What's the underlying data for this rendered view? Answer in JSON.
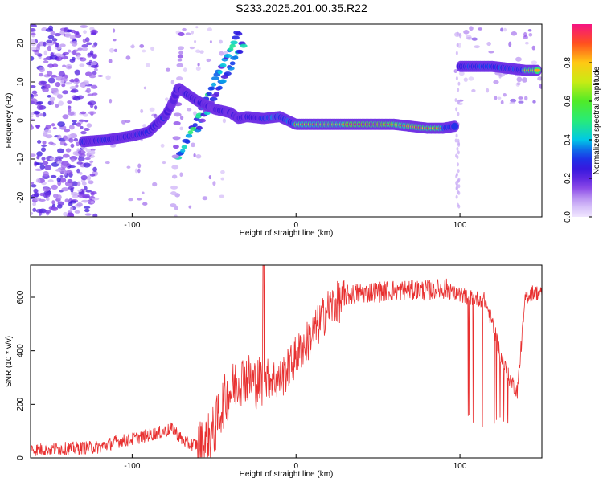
{
  "title": "S233.2025.201.00.35.R22",
  "chart_data": [
    {
      "type": "heatmap",
      "xlabel": "Height of straight line (km)",
      "ylabel": "Frequency (Hz)",
      "xlim": [
        -162,
        150
      ],
      "ylim": [
        -25,
        25
      ],
      "xticks": [
        -100,
        0,
        100
      ],
      "yticks": [
        -20,
        -10,
        0,
        10,
        20
      ],
      "colorbar": {
        "label": "Normalized spectral amplitude",
        "range": [
          0,
          1
        ],
        "ticks": [
          0.0,
          0.2,
          0.4,
          0.6,
          0.8
        ]
      },
      "ridge": {
        "x": [
          -130,
          -115,
          -100,
          -90,
          -80,
          -75,
          -72,
          -60,
          -50,
          -40,
          -35,
          -30,
          -20,
          -10,
          0,
          10,
          20,
          40,
          60,
          70,
          80,
          90,
          97,
          100,
          110,
          120,
          130,
          140,
          148
        ],
        "freq": [
          -5.5,
          -5,
          -4,
          -3,
          1,
          5,
          8.5,
          5,
          3,
          2,
          0.5,
          1,
          0.5,
          1,
          -1,
          -1,
          -1,
          -1,
          -1,
          -1.5,
          -2,
          -2,
          -1.5,
          14,
          14,
          14,
          13.5,
          13,
          13
        ]
      }
    },
    {
      "type": "line",
      "xlabel": "Height of straight line (km)",
      "ylabel": "SNR (10 * v/v)",
      "xlim": [
        -162,
        150
      ],
      "ylim": [
        0,
        720
      ],
      "xticks": [
        -100,
        0,
        100
      ],
      "yticks": [
        0,
        200,
        400,
        600
      ],
      "color": "#e83030",
      "series": [
        {
          "x": [
            -162,
            -140,
            -120,
            -110,
            -100,
            -90,
            -80,
            -75,
            -70,
            -65,
            -60,
            -55,
            -50,
            -45,
            -40,
            -35,
            -30,
            -25,
            -20,
            -15,
            -10,
            -5,
            0,
            5,
            10,
            15,
            20,
            25,
            30,
            40,
            50,
            60,
            70,
            80,
            90,
            95,
            100,
            105,
            110,
            115,
            120,
            125,
            130,
            135,
            140,
            145,
            150
          ],
          "values": [
            20,
            25,
            30,
            50,
            60,
            75,
            90,
            100,
            60,
            40,
            40,
            60,
            100,
            200,
            250,
            290,
            300,
            280,
            290,
            300,
            290,
            330,
            380,
            420,
            460,
            510,
            560,
            580,
            590,
            600,
            605,
            610,
            610,
            610,
            615,
            615,
            610,
            600,
            595,
            590,
            500,
            380,
            300,
            250,
            600,
            620,
            610
          ]
        }
      ]
    }
  ]
}
